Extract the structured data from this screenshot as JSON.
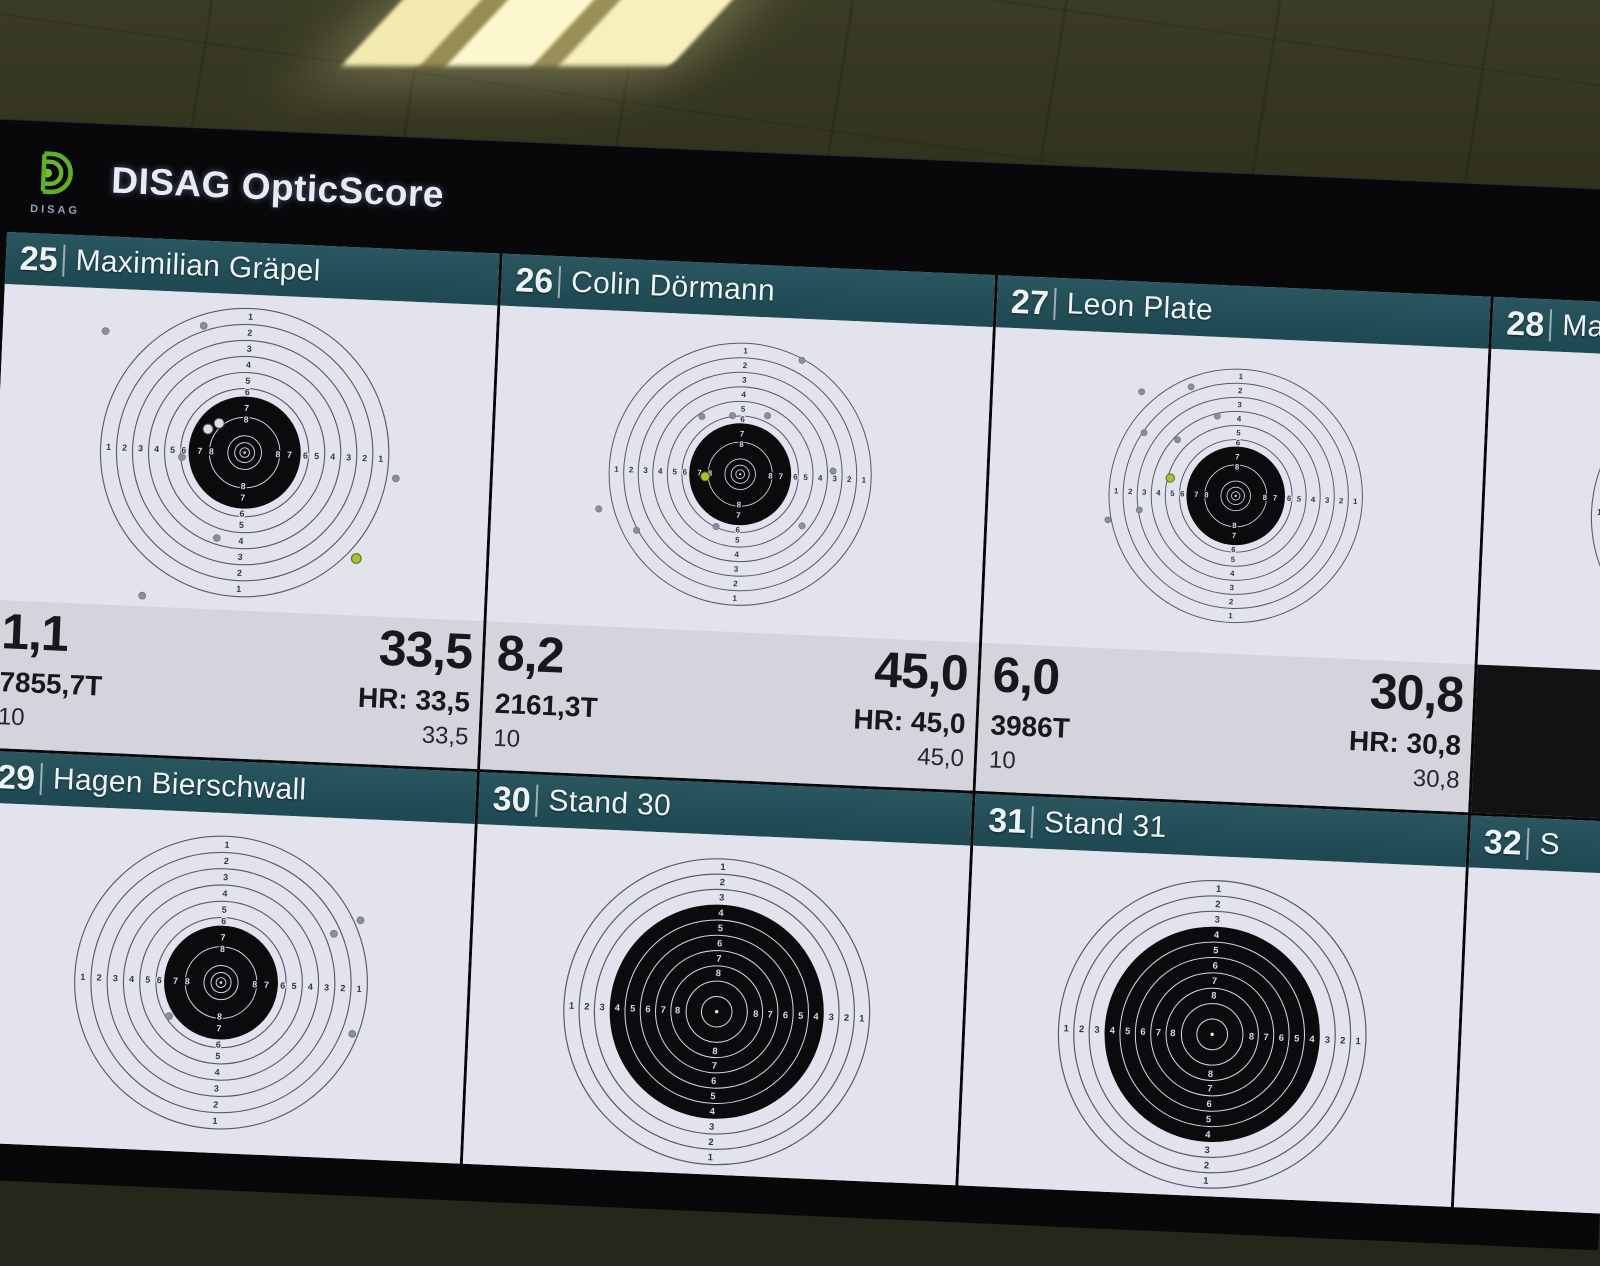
{
  "app": {
    "title": "DISAG OpticScore",
    "logo_text": "DISAG",
    "brand_green": "#5fae27",
    "header_teal": "#22505a",
    "score_band_bg": "#d3d4dc",
    "last_shot_marker_green": "#a4c52f"
  },
  "target_types": {
    "pistol": {
      "outline_rings": [
        9,
        8,
        7,
        6,
        5,
        4
      ],
      "black": 3.5,
      "inner_rings": [
        2.2,
        1.05,
        0.62,
        0.3
      ],
      "center_dot": 0.08,
      "dark_labels": [
        [
          "1",
          8.5
        ],
        [
          "2",
          7.5
        ],
        [
          "3",
          6.5
        ],
        [
          "4",
          5.5
        ],
        [
          "5",
          4.5
        ],
        [
          "6",
          3.8
        ]
      ],
      "light_labels": [
        [
          "7",
          2.8
        ],
        [
          "8",
          2.08
        ]
      ]
    },
    "rifle": {
      "outline_rings": [
        9,
        8.1,
        7.2
      ],
      "black": 6.3,
      "inner_rings": [
        5.4,
        4.5,
        3.6,
        2.7,
        1.8,
        0.9
      ],
      "center_dot": 0.1,
      "dark_labels": [
        [
          "1",
          8.55
        ],
        [
          "2",
          7.65
        ],
        [
          "3",
          6.75
        ]
      ],
      "light_labels": [
        [
          "4",
          5.85
        ],
        [
          "5",
          4.95
        ],
        [
          "6",
          4.05
        ],
        [
          "7",
          3.15
        ],
        [
          "8",
          2.3
        ]
      ]
    }
  },
  "panels": [
    {
      "row": 1,
      "number": "25",
      "name": "Maximilian Gräpel",
      "target": {
        "type": "pistol",
        "size": 330,
        "gray_shots": [
          [
            -9.0,
            7.2
          ],
          [
            -2.9,
            7.8
          ],
          [
            -3.9,
            -0.45
          ],
          [
            -1.5,
            -5.4
          ],
          [
            -6.0,
            -9.2
          ],
          [
            9.5,
            -1.2
          ]
        ],
        "white_shots": [
          [
            -2.35,
            1.37
          ],
          [
            -1.67,
            1.76
          ]
        ],
        "green_shot": [
          7.25,
          -6.3
        ]
      },
      "score": {
        "last": "1,1",
        "total": "33,5",
        "series": "7855,7T",
        "hr": "HR: 33,5",
        "count": "10",
        "sub": "33,5"
      }
    },
    {
      "row": 1,
      "number": "26",
      "name": "Colin Dörmann",
      "target": {
        "type": "pistol",
        "size": 300,
        "gray_shots": [
          [
            3.9,
            8.0
          ],
          [
            -0.7,
            4.0
          ],
          [
            -2.8,
            3.85
          ],
          [
            1.7,
            4.1
          ],
          [
            6.36,
            0.5
          ],
          [
            4.4,
            -3.36
          ],
          [
            -1.5,
            -3.66
          ],
          [
            -6.94,
            -4.16
          ],
          [
            -9.6,
            -2.8
          ]
        ],
        "white_shots": [],
        "green_shot": [
          -2.4,
          -0.26
        ]
      },
      "score": {
        "last": "8,2",
        "total": "45,0",
        "series": "2161,3T",
        "hr": "HR: 45,0",
        "count": "10",
        "sub": "45,0"
      }
    },
    {
      "row": 1,
      "number": "27",
      "name": "Leon Plate",
      "target": {
        "type": "pistol",
        "size": 290,
        "gray_shots": [
          [
            -7.0,
            7.1
          ],
          [
            -3.5,
            7.6
          ],
          [
            -1.55,
            5.6
          ],
          [
            -6.7,
            4.2
          ],
          [
            -4.3,
            3.8
          ],
          [
            -9.0,
            -2.1
          ],
          [
            -6.8,
            -1.3
          ]
        ],
        "white_shots": [],
        "green_shot": [
          -4.7,
          1.06
        ]
      },
      "score": {
        "last": "6,0",
        "total": "30,8",
        "series": "3986T",
        "hr": "HR: 30,8",
        "count": "10",
        "sub": "30,8"
      }
    },
    {
      "row": 1,
      "number": "28",
      "name": "Ma",
      "target": {
        "type": "pistol",
        "size": 320,
        "gray_shots": [],
        "white_shots": [],
        "green_shot": null
      },
      "score": null
    },
    {
      "row": 2,
      "number": "29",
      "name": "Hagen Bierschwall",
      "target": {
        "type": "pistol",
        "size": 335,
        "gray_shots": [
          [
            8.4,
            4.2
          ],
          [
            6.8,
            3.3
          ],
          [
            -3.1,
            -2.2
          ],
          [
            8.2,
            -2.8
          ]
        ],
        "white_shots": [],
        "green_shot": null
      },
      "score": null
    },
    {
      "row": 2,
      "number": "30",
      "name": "Stand 30",
      "target": {
        "type": "rifle",
        "size": 350,
        "gray_shots": [],
        "white_shots": [],
        "green_shot": null
      },
      "score": null
    },
    {
      "row": 2,
      "number": "31",
      "name": "Stand 31",
      "target": {
        "type": "rifle",
        "size": 352,
        "gray_shots": [],
        "white_shots": [],
        "green_shot": null
      },
      "score": null
    },
    {
      "row": 2,
      "number": "32",
      "name": "S",
      "target": null,
      "score": null
    }
  ]
}
